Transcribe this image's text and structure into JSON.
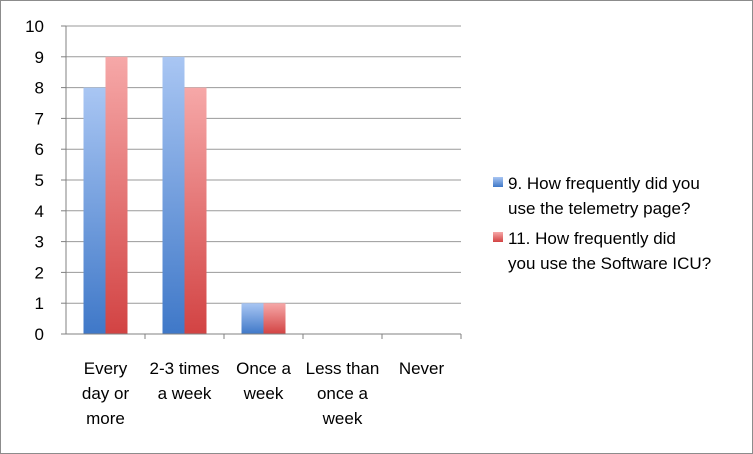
{
  "chart_data": {
    "type": "bar",
    "title": "",
    "xlabel": "",
    "ylabel": "",
    "ylim": [
      0,
      10
    ],
    "yticks": [
      0,
      1,
      2,
      3,
      4,
      5,
      6,
      7,
      8,
      9,
      10
    ],
    "grid": true,
    "legend_position": "right",
    "categories": [
      [
        "Every",
        "day or",
        "more"
      ],
      [
        "2-3 times",
        "a week"
      ],
      [
        "Once a",
        "week"
      ],
      [
        "Less than",
        "once a",
        "week"
      ],
      [
        "Never"
      ]
    ],
    "series": [
      {
        "name": [
          "9. How frequently did you",
          "use the telemetry page?"
        ],
        "color": "#5b8fd6",
        "color_light": "#a9c6f3",
        "color_dark": "#3f78c8",
        "values": [
          8,
          9,
          1,
          0,
          0
        ]
      },
      {
        "name": [
          "11. How frequently did",
          "you use the Software ICU?"
        ],
        "color": "#e06666",
        "color_light": "#f6a8a8",
        "color_dark": "#d24343",
        "values": [
          9,
          8,
          1,
          0,
          0
        ]
      }
    ],
    "colors": {
      "grid": "#9a9a9a",
      "axis": "#808080",
      "frame": "#8c8c8c"
    }
  }
}
